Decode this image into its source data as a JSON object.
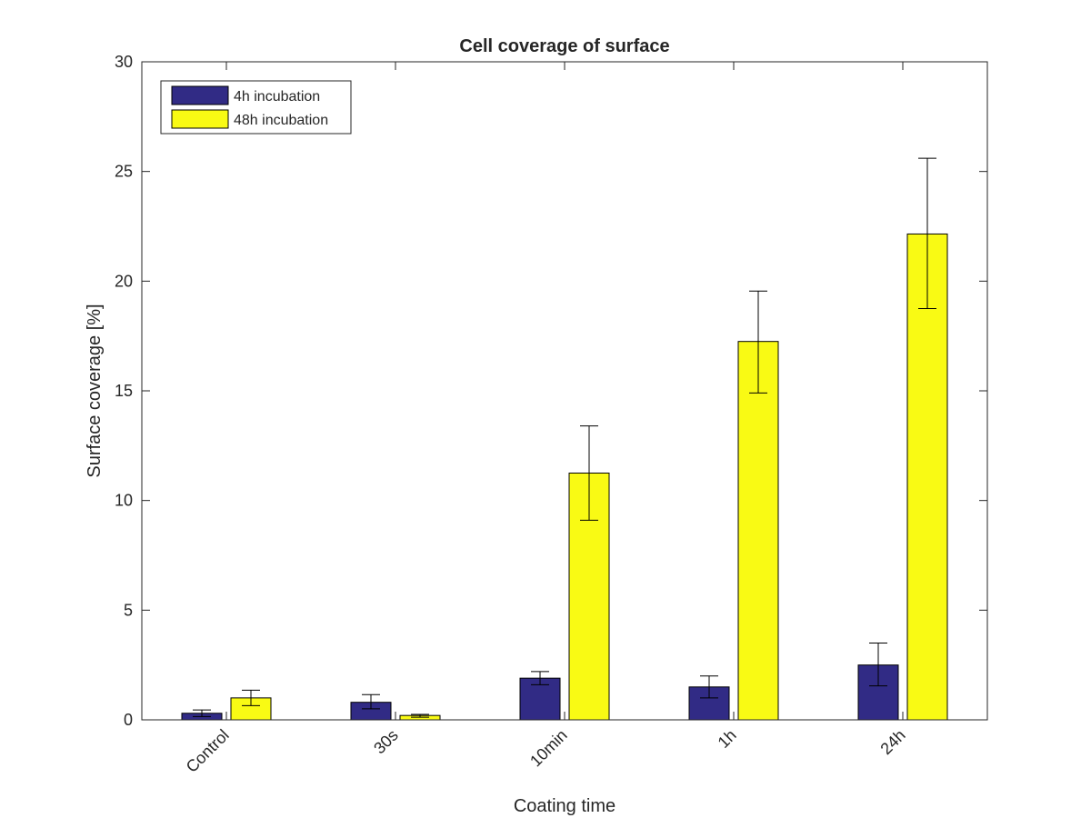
{
  "chart_data": {
    "type": "bar",
    "title": "Cell coverage of surface",
    "xlabel": "Coating time",
    "ylabel": "Surface coverage [%]",
    "categories": [
      "Control",
      "30s",
      "10min",
      "1h",
      "24h"
    ],
    "ylim": [
      0,
      30
    ],
    "yticks": [
      0,
      5,
      10,
      15,
      20,
      25,
      30
    ],
    "ytick_labels": [
      "0",
      "5",
      "10",
      "15",
      "20",
      "25",
      "30"
    ],
    "grid": false,
    "legend_position": "top-left",
    "series": [
      {
        "name": "4h incubation",
        "color": "#312b85",
        "values": [
          0.3,
          0.8,
          1.9,
          1.5,
          2.5
        ],
        "error_low": [
          0.15,
          0.5,
          1.6,
          1.0,
          1.55
        ],
        "error_high": [
          0.45,
          1.15,
          2.2,
          2.0,
          3.5
        ]
      },
      {
        "name": "48h incubation",
        "color": "#f9fa14",
        "values": [
          1.0,
          0.2,
          11.25,
          17.25,
          22.15
        ],
        "error_low": [
          0.65,
          0.12,
          9.1,
          14.9,
          18.75
        ],
        "error_high": [
          1.35,
          0.25,
          13.4,
          19.55,
          25.6
        ]
      }
    ]
  }
}
